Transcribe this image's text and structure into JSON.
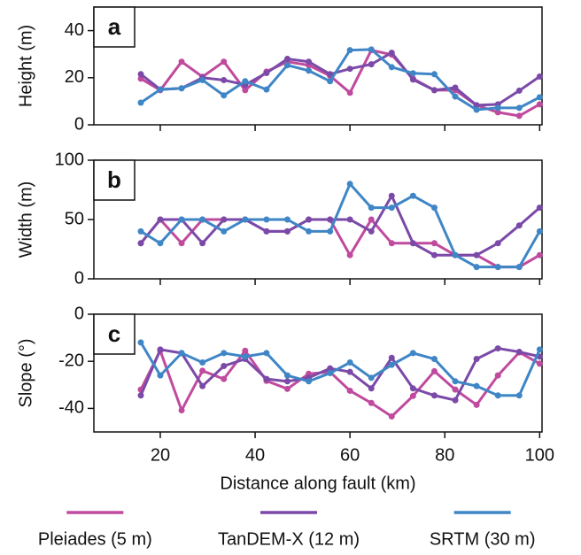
{
  "chart_data": [
    {
      "type": "line",
      "panel_label": "a",
      "ylabel": "Height (m)",
      "xlim": [
        6,
        100.5
      ],
      "xticks": [
        20,
        40,
        60,
        80,
        100
      ],
      "ylim": [
        0,
        50
      ],
      "yticks": [
        0,
        20,
        40
      ],
      "legend": "bottom",
      "x": [
        15.9,
        20,
        24.5,
        28.9,
        33.4,
        37.9,
        42.4,
        46.8,
        51.3,
        55.8,
        60,
        64.5,
        68.8,
        73.3,
        77.8,
        82.2,
        86.7,
        91.2,
        95.7,
        100
      ],
      "series": [
        {
          "name": "Pleiades (5 m)",
          "color": "#c04a9e",
          "values": [
            19.6,
            14.7,
            26.8,
            20.4,
            26.8,
            14.7,
            22.6,
            26.8,
            25.3,
            20.8,
            13.6,
            31.7,
            29.8,
            19.6,
            14.7,
            14.7,
            8.3,
            5.3,
            3.8,
            8.7
          ]
        },
        {
          "name": "TanDEM-X (12 m)",
          "color": "#7b4aa8",
          "values": [
            21.5,
            15,
            15.5,
            20,
            19,
            17,
            22,
            28,
            26.8,
            21.5,
            23.8,
            25.7,
            30.6,
            19.2,
            14.7,
            15.8,
            8.3,
            8.7,
            14.5,
            20.5
          ]
        },
        {
          "name": "SRTM (30 m)",
          "color": "#3f86c6",
          "values": [
            9.4,
            15,
            15.5,
            19,
            12.5,
            18.5,
            15,
            25.3,
            23,
            18.5,
            31.7,
            32,
            24.5,
            21.9,
            21.5,
            12,
            6.4,
            7.2,
            7.2,
            11.7
          ]
        }
      ]
    },
    {
      "type": "line",
      "panel_label": "b",
      "ylabel": "Width (m)",
      "xlim": [
        6,
        100.5
      ],
      "xticks": [
        20,
        40,
        60,
        80,
        100
      ],
      "ylim": [
        0,
        100
      ],
      "yticks": [
        0,
        50,
        100
      ],
      "x": [
        15.9,
        20,
        24.5,
        28.9,
        33.4,
        37.9,
        42.4,
        46.8,
        51.3,
        55.8,
        60,
        64.5,
        68.8,
        73.3,
        77.8,
        82.2,
        86.7,
        91.2,
        95.7,
        100
      ],
      "series": [
        {
          "color": "#c04a9e",
          "values": [
            30,
            50,
            30,
            50,
            50,
            50,
            40,
            40,
            50,
            50,
            20,
            50,
            30,
            30,
            30,
            20,
            20,
            10,
            10,
            20
          ]
        },
        {
          "color": "#7b4aa8",
          "values": [
            30,
            50,
            50,
            30,
            50,
            50,
            40,
            40,
            50,
            50,
            50,
            40,
            70,
            30,
            20,
            20,
            20,
            30,
            45,
            60
          ]
        },
        {
          "color": "#3f86c6",
          "values": [
            40,
            30,
            50,
            50,
            40,
            50,
            50,
            50,
            40,
            40,
            80,
            60,
            60,
            70,
            60,
            20,
            10,
            10,
            10,
            40
          ]
        }
      ]
    },
    {
      "type": "line",
      "panel_label": "c",
      "ylabel": "Slope (°)",
      "xlabel": "Distance along fault (km)",
      "xlim": [
        6,
        100.5
      ],
      "xticks": [
        20,
        40,
        60,
        80,
        100
      ],
      "ylim": [
        -50,
        0
      ],
      "yticks": [
        -40,
        -20,
        0
      ],
      "x": [
        15.9,
        20,
        24.5,
        28.9,
        33.4,
        37.9,
        42.4,
        46.8,
        51.3,
        55.8,
        60,
        64.5,
        68.8,
        73.3,
        77.8,
        82.2,
        86.7,
        91.2,
        95.7,
        100
      ],
      "series": [
        {
          "color": "#c04a9e",
          "values": [
            -32,
            -15.5,
            -40.8,
            -24,
            -27.5,
            -15.5,
            -28.3,
            -31.7,
            -25.3,
            -24.5,
            -32.5,
            -37.7,
            -43.4,
            -34.7,
            -24.2,
            -32,
            -38.5,
            -26,
            -16.2,
            -21
          ]
        },
        {
          "color": "#7b4aa8",
          "values": [
            -34.5,
            -15,
            -16.5,
            -30.5,
            -22,
            -19,
            -27.5,
            -28.5,
            -27,
            -23,
            -24.5,
            -31.5,
            -18.5,
            -31.5,
            -34.5,
            -36.5,
            -19,
            -14.5,
            -16,
            -18
          ]
        },
        {
          "color": "#3f86c6",
          "values": [
            -12,
            -26,
            -16.5,
            -20.5,
            -16.5,
            -18,
            -16.5,
            -26,
            -28.5,
            -25,
            -20.5,
            -27,
            -21.5,
            -16.5,
            -19,
            -28.5,
            -30.5,
            -34.5,
            -34.5,
            -15
          ]
        }
      ]
    }
  ]
}
